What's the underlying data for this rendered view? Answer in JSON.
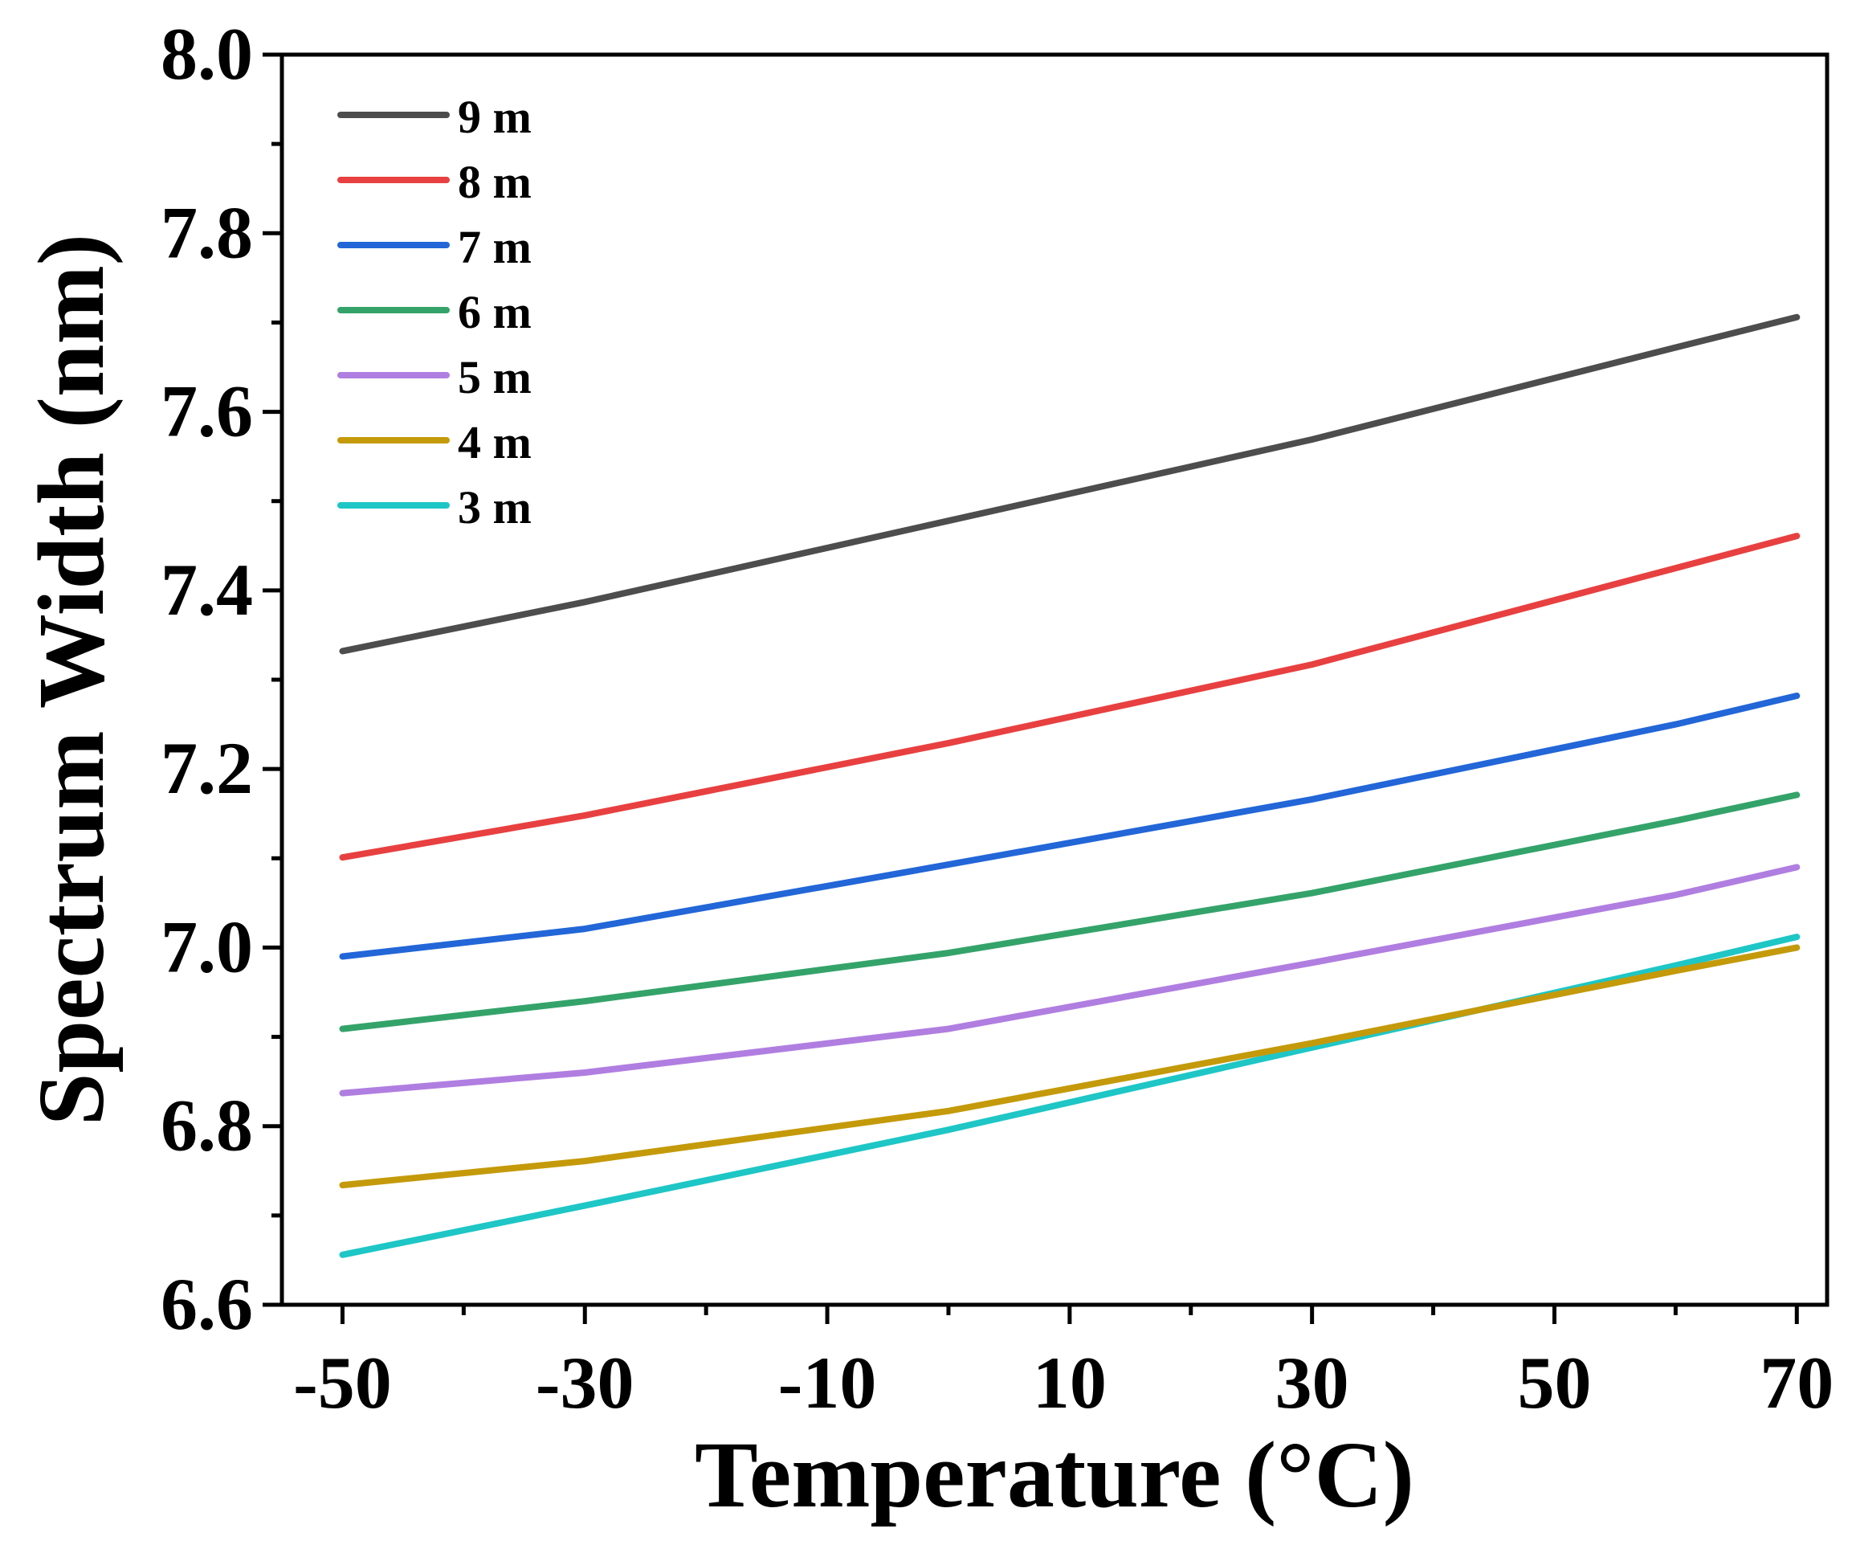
{
  "chart_data": {
    "type": "line",
    "title": "",
    "xlabel": "Temperature (°C)",
    "ylabel": "Spectrum Width (nm)",
    "xlim": [
      -55,
      72.5
    ],
    "ylim": [
      6.6,
      8.0
    ],
    "xticks": [
      -50,
      -30,
      -10,
      10,
      30,
      50,
      70
    ],
    "xtick_labels": [
      "-50",
      "-30",
      "-10",
      "10",
      "30",
      "50",
      "70"
    ],
    "yticks": [
      6.6,
      6.8,
      7.0,
      7.2,
      7.4,
      7.6,
      7.8,
      8.0
    ],
    "ytick_labels": [
      "6.6",
      "6.8",
      "7.0",
      "7.2",
      "7.4",
      "7.6",
      "7.8",
      "8.0"
    ],
    "grid": false,
    "legend_position": "top-left",
    "x": [
      -50,
      -30,
      0,
      30,
      60,
      70
    ],
    "series": [
      {
        "name": "9 m",
        "color": "#4d4d4d",
        "values": [
          7.332,
          7.387,
          7.478,
          7.569,
          7.672,
          7.706
        ]
      },
      {
        "name": "8 m",
        "color": "#e84040",
        "values": [
          7.101,
          7.148,
          7.229,
          7.317,
          7.425,
          7.461
        ]
      },
      {
        "name": "7 m",
        "color": "#2266d8",
        "values": [
          6.99,
          7.021,
          7.093,
          7.166,
          7.25,
          7.282
        ]
      },
      {
        "name": "6 m",
        "color": "#34a36a",
        "values": [
          6.909,
          6.94,
          6.994,
          7.061,
          7.142,
          7.171
        ]
      },
      {
        "name": "5 m",
        "color": "#b07ee0",
        "values": [
          6.837,
          6.86,
          6.909,
          6.983,
          7.059,
          7.09
        ]
      },
      {
        "name": "4 m",
        "color": "#c49a0a",
        "values": [
          6.734,
          6.761,
          6.817,
          6.893,
          6.974,
          7.0
        ]
      },
      {
        "name": "3 m",
        "color": "#1ec6c6",
        "values": [
          6.656,
          6.711,
          6.796,
          6.888,
          6.98,
          7.012
        ]
      }
    ]
  }
}
